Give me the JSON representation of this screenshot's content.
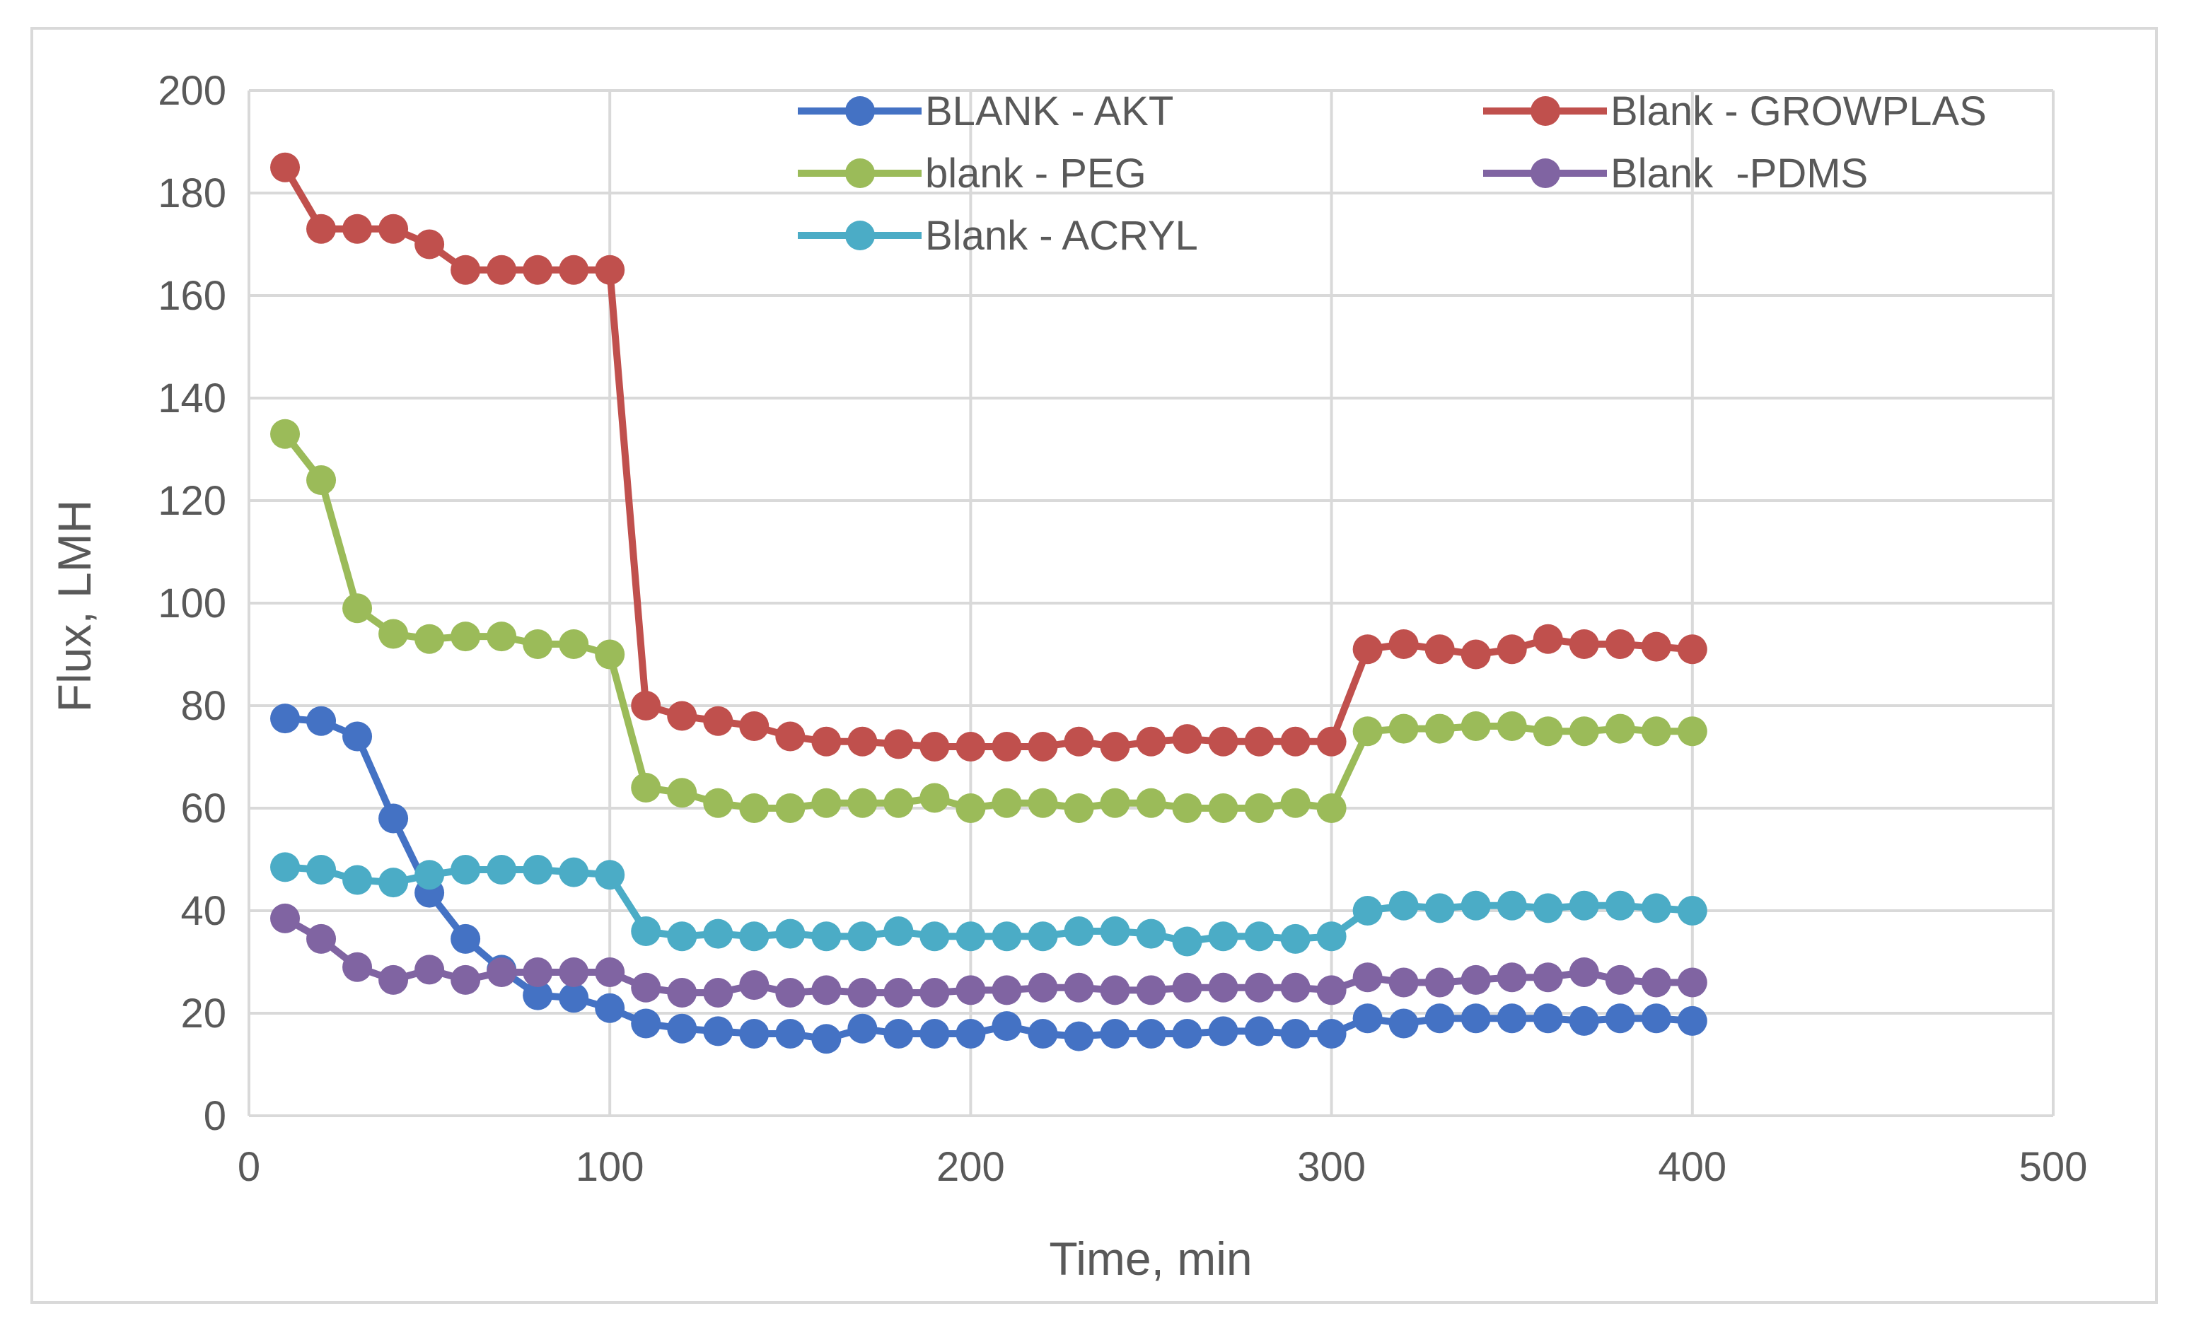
{
  "chart_data": {
    "type": "line",
    "title": "",
    "xlabel": "Time, min",
    "ylabel": "Flux, LMH",
    "xlim": [
      0,
      500
    ],
    "ylim": [
      0,
      200
    ],
    "xticks": [
      0,
      100,
      200,
      300,
      400,
      500
    ],
    "yticks": [
      0,
      20,
      40,
      60,
      80,
      100,
      120,
      140,
      160,
      180,
      200
    ],
    "grid": true,
    "legend_position": "top",
    "x": [
      10,
      20,
      30,
      40,
      50,
      60,
      70,
      80,
      90,
      100,
      110,
      120,
      130,
      140,
      150,
      160,
      170,
      180,
      190,
      200,
      210,
      220,
      230,
      240,
      250,
      260,
      270,
      280,
      290,
      300,
      310,
      320,
      330,
      340,
      350,
      360,
      370,
      380,
      390,
      400
    ],
    "series": [
      {
        "name": "BLANK - AKT",
        "color": "#4472c4",
        "values": [
          77.5,
          77,
          74,
          58,
          43.5,
          34.5,
          28.5,
          23.5,
          23,
          21,
          18,
          17,
          16.5,
          16,
          16,
          15,
          17,
          16,
          16,
          16,
          17.5,
          16,
          15.5,
          16,
          16,
          16,
          16.5,
          16.5,
          16,
          16,
          19,
          18,
          19,
          19,
          19,
          19,
          18.5,
          19,
          19,
          18.5
        ]
      },
      {
        "name": "Blank - GROWPLAS",
        "color": "#c0504d",
        "values": [
          185,
          173,
          173,
          173,
          170,
          165,
          165,
          165,
          165,
          165,
          80,
          78,
          77,
          76,
          74,
          73,
          73,
          72.5,
          72,
          72,
          72,
          72,
          73,
          72,
          73,
          73.5,
          73,
          73,
          73,
          73,
          91,
          92,
          91,
          90,
          91,
          93,
          92,
          92,
          91.5,
          91
        ]
      },
      {
        "name": "blank - PEG",
        "color": "#9bbb59",
        "values": [
          133,
          124,
          99,
          94,
          93,
          93.5,
          93.5,
          92,
          92,
          90,
          64,
          63,
          61,
          60,
          60,
          61,
          61,
          61,
          62,
          60,
          61,
          61,
          60,
          61,
          61,
          60,
          60,
          60,
          61,
          60,
          75,
          75.5,
          75.5,
          76,
          76,
          75,
          75,
          75.5,
          75,
          75
        ]
      },
      {
        "name": "Blank  -PDMS",
        "color": "#8064a2",
        "values": [
          38.5,
          34.5,
          29,
          26.5,
          28.5,
          26.5,
          28,
          28,
          28,
          28,
          25,
          24,
          24,
          25.5,
          24,
          24.5,
          24,
          24,
          24,
          24.5,
          24.5,
          25,
          25,
          24.5,
          24.5,
          25,
          25,
          25,
          25,
          24.5,
          27,
          26,
          26,
          26.5,
          27,
          27,
          28,
          26.5,
          26,
          26
        ]
      },
      {
        "name": "Blank - ACRYL",
        "color": "#4bacc6",
        "values": [
          48.5,
          48,
          46,
          45.5,
          47,
          48,
          48,
          48,
          47.5,
          47,
          36,
          35,
          35.5,
          35,
          35.5,
          35,
          35,
          36,
          35,
          35,
          35,
          35,
          36,
          36,
          35.5,
          34,
          35,
          35,
          34.5,
          35,
          40,
          41,
          40.5,
          41,
          41,
          40.5,
          41,
          41,
          40.5,
          40
        ]
      }
    ]
  }
}
